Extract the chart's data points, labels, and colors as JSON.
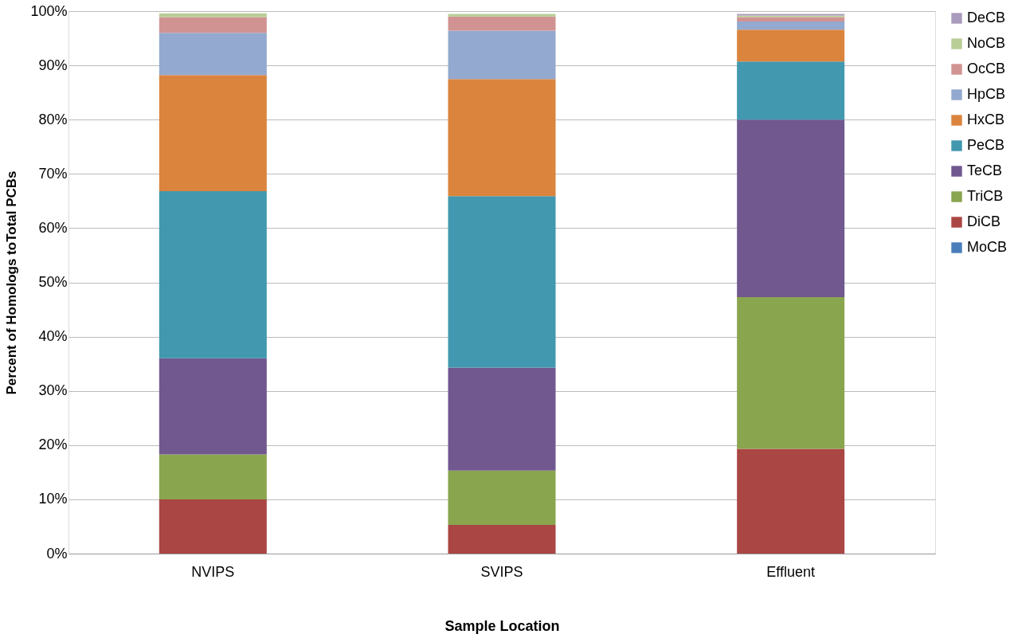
{
  "chart_data": {
    "type": "bar",
    "stacked": true,
    "xlabel": "Sample Location",
    "ylabel": "Percent of Homologs toTotal PCBs",
    "categories": [
      "NVIPS",
      "SVIPS",
      "Effluent"
    ],
    "series": [
      {
        "name": "MoCB",
        "color": "#4a7ebb",
        "values": [
          0,
          0,
          0
        ]
      },
      {
        "name": "DiCB",
        "color": "#aa4643",
        "values": [
          10,
          5.3,
          19.3
        ]
      },
      {
        "name": "TriCB",
        "color": "#89a54e",
        "values": [
          8.3,
          10,
          28
        ]
      },
      {
        "name": "TeCB",
        "color": "#71588f",
        "values": [
          17.7,
          19,
          32.7
        ]
      },
      {
        "name": "PeCB",
        "color": "#4198af",
        "values": [
          30.8,
          31.6,
          10.7
        ]
      },
      {
        "name": "HxCB",
        "color": "#db843d",
        "values": [
          21.4,
          21.6,
          5.9
        ]
      },
      {
        "name": "HpCB",
        "color": "#93a9cf",
        "values": [
          7.8,
          8.9,
          1.5
        ]
      },
      {
        "name": "OcCB",
        "color": "#d19392",
        "values": [
          2.9,
          2.6,
          0.8
        ]
      },
      {
        "name": "NoCB",
        "color": "#b9cd96",
        "values": [
          0.7,
          0.5,
          0.3
        ]
      },
      {
        "name": "DeCB",
        "color": "#a99bbd",
        "values": [
          0,
          0,
          0.3
        ]
      }
    ],
    "ylim": [
      0,
      100
    ],
    "yticks": [
      {
        "value": 0,
        "label": "0%"
      },
      {
        "value": 10,
        "label": "10%"
      },
      {
        "value": 20,
        "label": "20%"
      },
      {
        "value": 30,
        "label": "30%"
      },
      {
        "value": 40,
        "label": "40%"
      },
      {
        "value": 50,
        "label": "50%"
      },
      {
        "value": 60,
        "label": "60%"
      },
      {
        "value": 70,
        "label": "70%"
      },
      {
        "value": 80,
        "label": "80%"
      },
      {
        "value": 90,
        "label": "90%"
      },
      {
        "value": 100,
        "label": "100%"
      }
    ],
    "grid": "y",
    "legend": "right"
  }
}
